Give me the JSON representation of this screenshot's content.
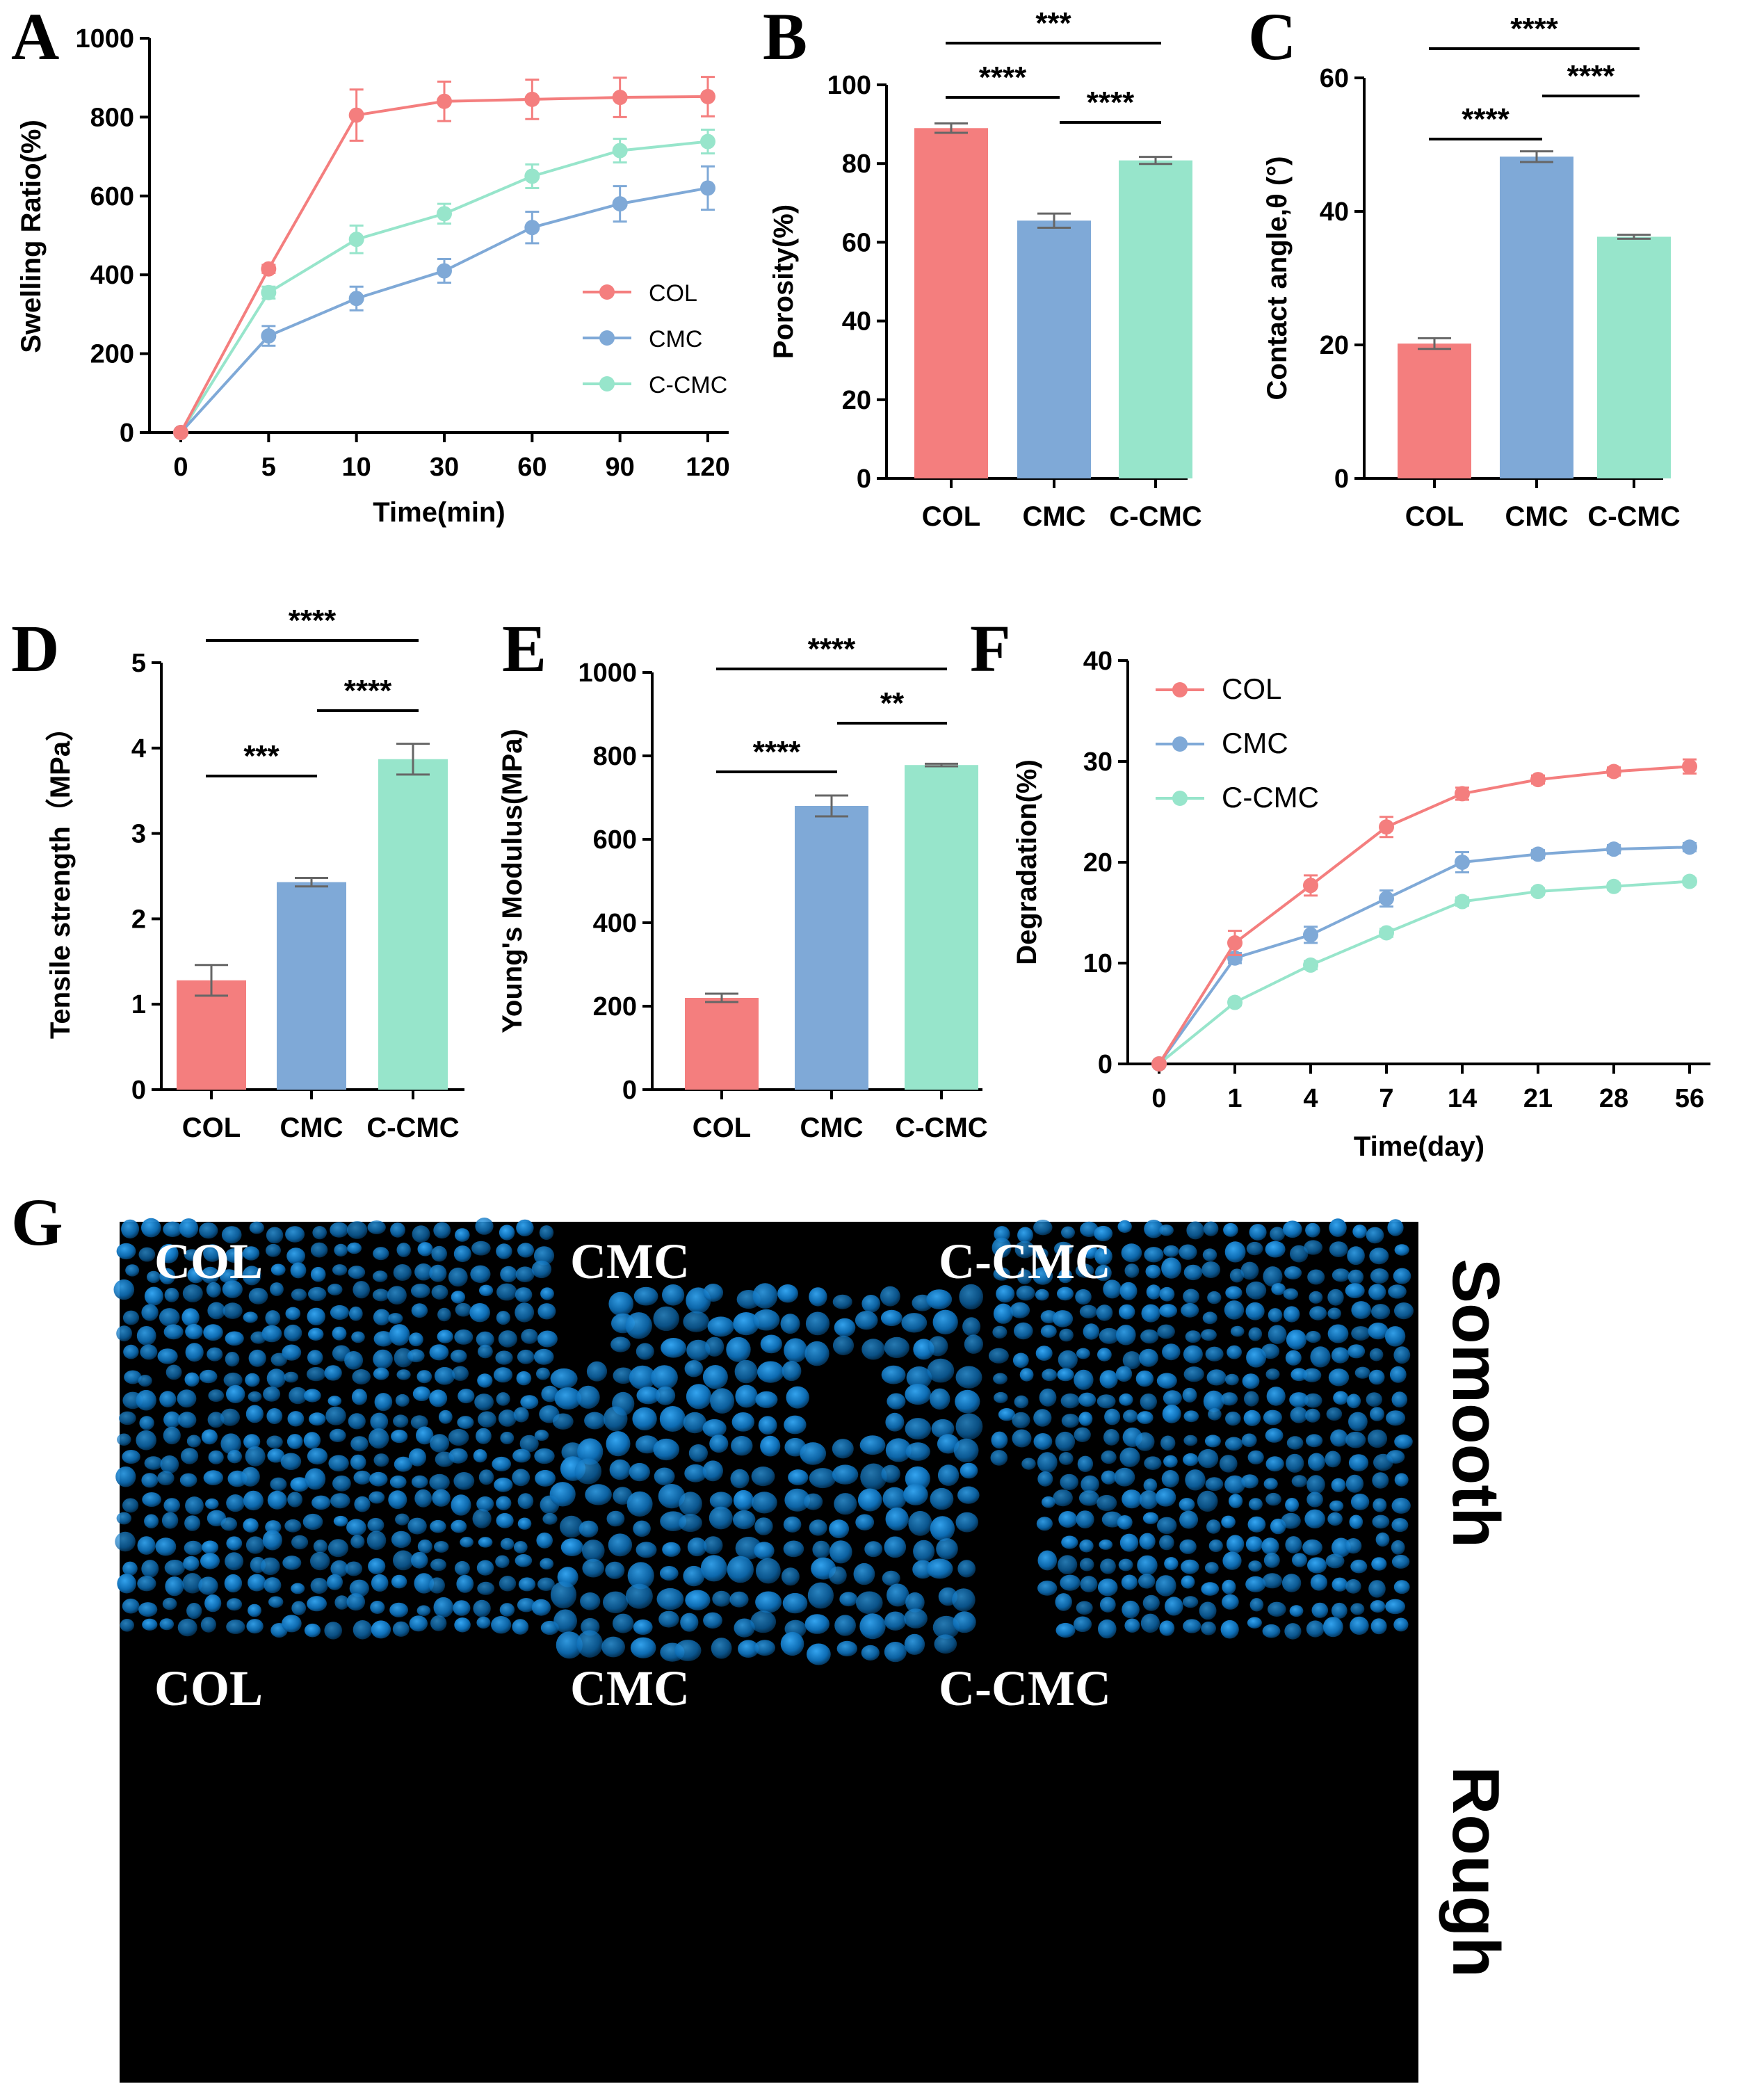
{
  "panels": {
    "A": "A",
    "B": "B",
    "C": "C",
    "D": "D",
    "E": "E",
    "F": "F",
    "G": "G"
  },
  "colors": {
    "COL": "#F47E7E",
    "CMC": "#7FA9D7",
    "C-CMC": "#97E5CB"
  },
  "chart_data": [
    {
      "id": "A",
      "type": "line",
      "x": [
        "0",
        "5",
        "10",
        "30",
        "60",
        "90",
        "120"
      ],
      "xlabel": "Time(min)",
      "ylabel": "Swelling Ratio(%)",
      "ylim": [
        0,
        1000
      ],
      "yticks": [
        0,
        200,
        400,
        600,
        800,
        1000
      ],
      "legend": "right",
      "series": [
        {
          "name": "COL",
          "values": [
            0,
            415,
            805,
            840,
            845,
            850,
            852
          ],
          "errors": [
            0,
            10,
            65,
            50,
            50,
            50,
            50
          ]
        },
        {
          "name": "CMC",
          "values": [
            0,
            245,
            340,
            410,
            520,
            580,
            620
          ],
          "errors": [
            0,
            25,
            30,
            30,
            40,
            45,
            55
          ]
        },
        {
          "name": "C-CMC",
          "values": [
            0,
            355,
            490,
            555,
            650,
            715,
            738
          ],
          "errors": [
            0,
            15,
            35,
            25,
            30,
            30,
            30
          ]
        }
      ]
    },
    {
      "id": "B",
      "type": "bar",
      "categories": [
        "COL",
        "CMC",
        "C-CMC"
      ],
      "values": [
        89,
        65.5,
        80.8
      ],
      "errors": [
        1.2,
        1.8,
        0.9
      ],
      "ylabel": "Porosity(%)",
      "ylim": [
        0,
        100
      ],
      "yticks": [
        0,
        20,
        40,
        60,
        80,
        100
      ],
      "significance": [
        {
          "from": 0,
          "to": 2,
          "label": "***",
          "level": 3
        },
        {
          "from": 0,
          "to": 1,
          "label": "****",
          "level": 2
        },
        {
          "from": 1,
          "to": 2,
          "label": "****",
          "level": 1
        }
      ]
    },
    {
      "id": "C",
      "type": "bar",
      "categories": [
        "COL",
        "CMC",
        "C-CMC"
      ],
      "values": [
        20.2,
        48.2,
        36.2
      ],
      "errors": [
        0.8,
        0.8,
        0.3
      ],
      "ylabel": "Contact angle,θ (°)",
      "ylim": [
        0,
        60
      ],
      "yticks": [
        0,
        20,
        40,
        60
      ],
      "significance": [
        {
          "from": 0,
          "to": 2,
          "label": "****",
          "level": 3
        },
        {
          "from": 1,
          "to": 2,
          "label": "****",
          "level": 2
        },
        {
          "from": 0,
          "to": 1,
          "label": "****",
          "level": 1
        }
      ]
    },
    {
      "id": "D",
      "type": "bar",
      "categories": [
        "COL",
        "CMC",
        "C-CMC"
      ],
      "values": [
        1.28,
        2.43,
        3.87
      ],
      "errors": [
        0.18,
        0.05,
        0.18
      ],
      "ylabel": "Tensile strength（MPa）",
      "ylim": [
        0,
        5
      ],
      "yticks": [
        0,
        1,
        2,
        3,
        4,
        5
      ],
      "significance": [
        {
          "from": 0,
          "to": 2,
          "label": "****",
          "level": 3
        },
        {
          "from": 1,
          "to": 2,
          "label": "****",
          "level": 2
        },
        {
          "from": 0,
          "to": 1,
          "label": "***",
          "level": 1
        }
      ]
    },
    {
      "id": "E",
      "type": "bar",
      "categories": [
        "COL",
        "CMC",
        "C-CMC"
      ],
      "values": [
        220,
        680,
        778
      ],
      "errors": [
        10,
        25,
        3
      ],
      "ylabel": "Young's Modulus(MPa)",
      "ylim": [
        0,
        1000
      ],
      "yticks": [
        0,
        200,
        400,
        600,
        800,
        1000
      ],
      "significance": [
        {
          "from": 0,
          "to": 2,
          "label": "****",
          "level": 3
        },
        {
          "from": 1,
          "to": 2,
          "label": "**",
          "level": 2
        },
        {
          "from": 0,
          "to": 1,
          "label": "****",
          "level": 1
        }
      ]
    },
    {
      "id": "F",
      "type": "line",
      "x": [
        "0",
        "1",
        "4",
        "7",
        "14",
        "21",
        "28",
        "56"
      ],
      "xlabel": "Time(day)",
      "ylabel": "Degradation(%)",
      "ylim": [
        0,
        40
      ],
      "yticks": [
        0,
        10,
        20,
        30,
        40
      ],
      "legend": "top-left",
      "series": [
        {
          "name": "COL",
          "values": [
            0,
            12,
            17.7,
            23.5,
            26.8,
            28.2,
            29.0,
            29.5
          ],
          "errors": [
            0,
            1.2,
            1.0,
            1.0,
            0.6,
            0.4,
            0.4,
            0.7
          ]
        },
        {
          "name": "CMC",
          "values": [
            0,
            10.5,
            12.8,
            16.4,
            20.0,
            20.8,
            21.3,
            21.5
          ],
          "errors": [
            0,
            0.5,
            0.8,
            0.8,
            1.0,
            0.4,
            0.4,
            0.4
          ]
        },
        {
          "name": "C-CMC",
          "values": [
            0,
            6.1,
            9.8,
            13.0,
            16.1,
            17.1,
            17.6,
            18.1
          ],
          "errors": [
            0,
            0.3,
            0.4,
            0.4,
            0.4,
            0.3,
            0.3,
            0.3
          ]
        }
      ]
    }
  ],
  "microscopy": {
    "top_labels": [
      "COL",
      "CMC",
      "C-CMC"
    ],
    "bottom_labels": [
      "COL",
      "CMC",
      "C-CMC"
    ],
    "row_smooth": "Somooth",
    "row_rough": "Rough"
  }
}
